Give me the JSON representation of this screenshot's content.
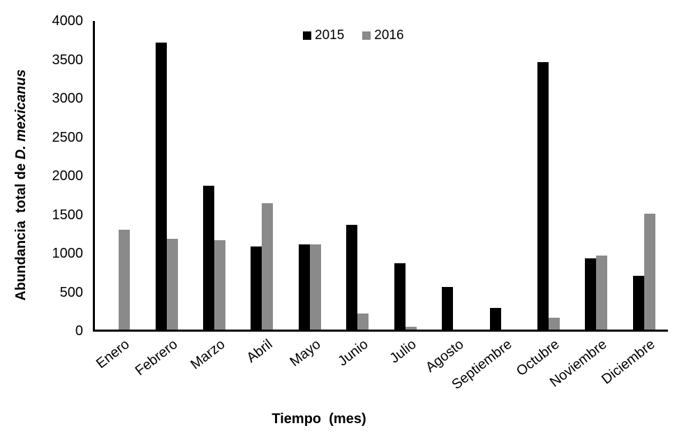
{
  "chart_data": {
    "type": "bar",
    "title": "",
    "categories": [
      "Enero",
      "Febrero",
      "Marzo",
      "Abril",
      "Mayo",
      "Junio",
      "Julio",
      "Agosto",
      "Septiembre",
      "Octubre",
      "Noviembre",
      "Diciembre"
    ],
    "series": [
      {
        "name": "2015",
        "color": "#000000",
        "values": [
          0,
          3720,
          1860,
          1080,
          1100,
          1360,
          860,
          555,
          280,
          3465,
          925,
          700
        ]
      },
      {
        "name": "2016",
        "color": "#8a8a8a",
        "values": [
          1295,
          1180,
          1155,
          1640,
          1100,
          210,
          35,
          0,
          0,
          150,
          960,
          1500
        ]
      }
    ],
    "xlabel": "Tiempo  (mes)",
    "ylabel": {
      "regular": "Abundancia  total de ",
      "italic": "D. mexicanus"
    },
    "ylim": [
      0,
      4000
    ],
    "ytick_step": 500,
    "yticks": [
      0,
      500,
      1000,
      1500,
      2000,
      2500,
      3000,
      3500,
      4000
    ],
    "legend_position": "top-center",
    "grid": false,
    "bar_label_rotation_deg": -38
  },
  "colors": {
    "background": "#ffffff",
    "axis": "#000000",
    "text": "#000000",
    "series_2015": "#000000",
    "series_2016": "#8a8a8a"
  }
}
